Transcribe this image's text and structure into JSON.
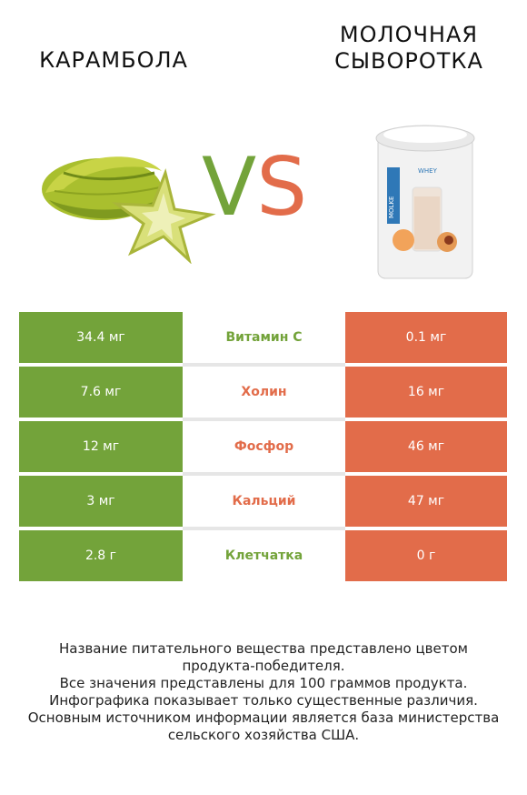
{
  "left_title": "КАРАМБОЛА",
  "right_title": "МОЛОЧНАЯ СЫВОРОТКА",
  "vs": {
    "v": "V",
    "s": "S"
  },
  "colors": {
    "left": "#73a33a",
    "right": "#e26c4a"
  },
  "images": {
    "left": "starfruit-image",
    "right": "whey-powder-can-image"
  },
  "can_labels": {
    "brand": "WHEY",
    "side": "MOLKE"
  },
  "rows": [
    {
      "left": "34.4 мг",
      "nutrient": "Витамин C",
      "right": "0.1 мг",
      "winner": "left"
    },
    {
      "left": "7.6 мг",
      "nutrient": "Холин",
      "right": "16 мг",
      "winner": "right"
    },
    {
      "left": "12 мг",
      "nutrient": "Фосфор",
      "right": "46 мг",
      "winner": "right"
    },
    {
      "left": "3 мг",
      "nutrient": "Кальций",
      "right": "47 мг",
      "winner": "right"
    },
    {
      "left": "2.8 г",
      "nutrient": "Клетчатка",
      "right": "0 г",
      "winner": "left"
    }
  ],
  "footer": [
    "Название питательного вещества представлено цветом",
    "продукта-победителя.",
    "Все значения представлены для 100 граммов продукта.",
    "Инфографика показывает только существенные различия.",
    "Основным источником информации является база министерства",
    "сельского хозяйства США."
  ]
}
